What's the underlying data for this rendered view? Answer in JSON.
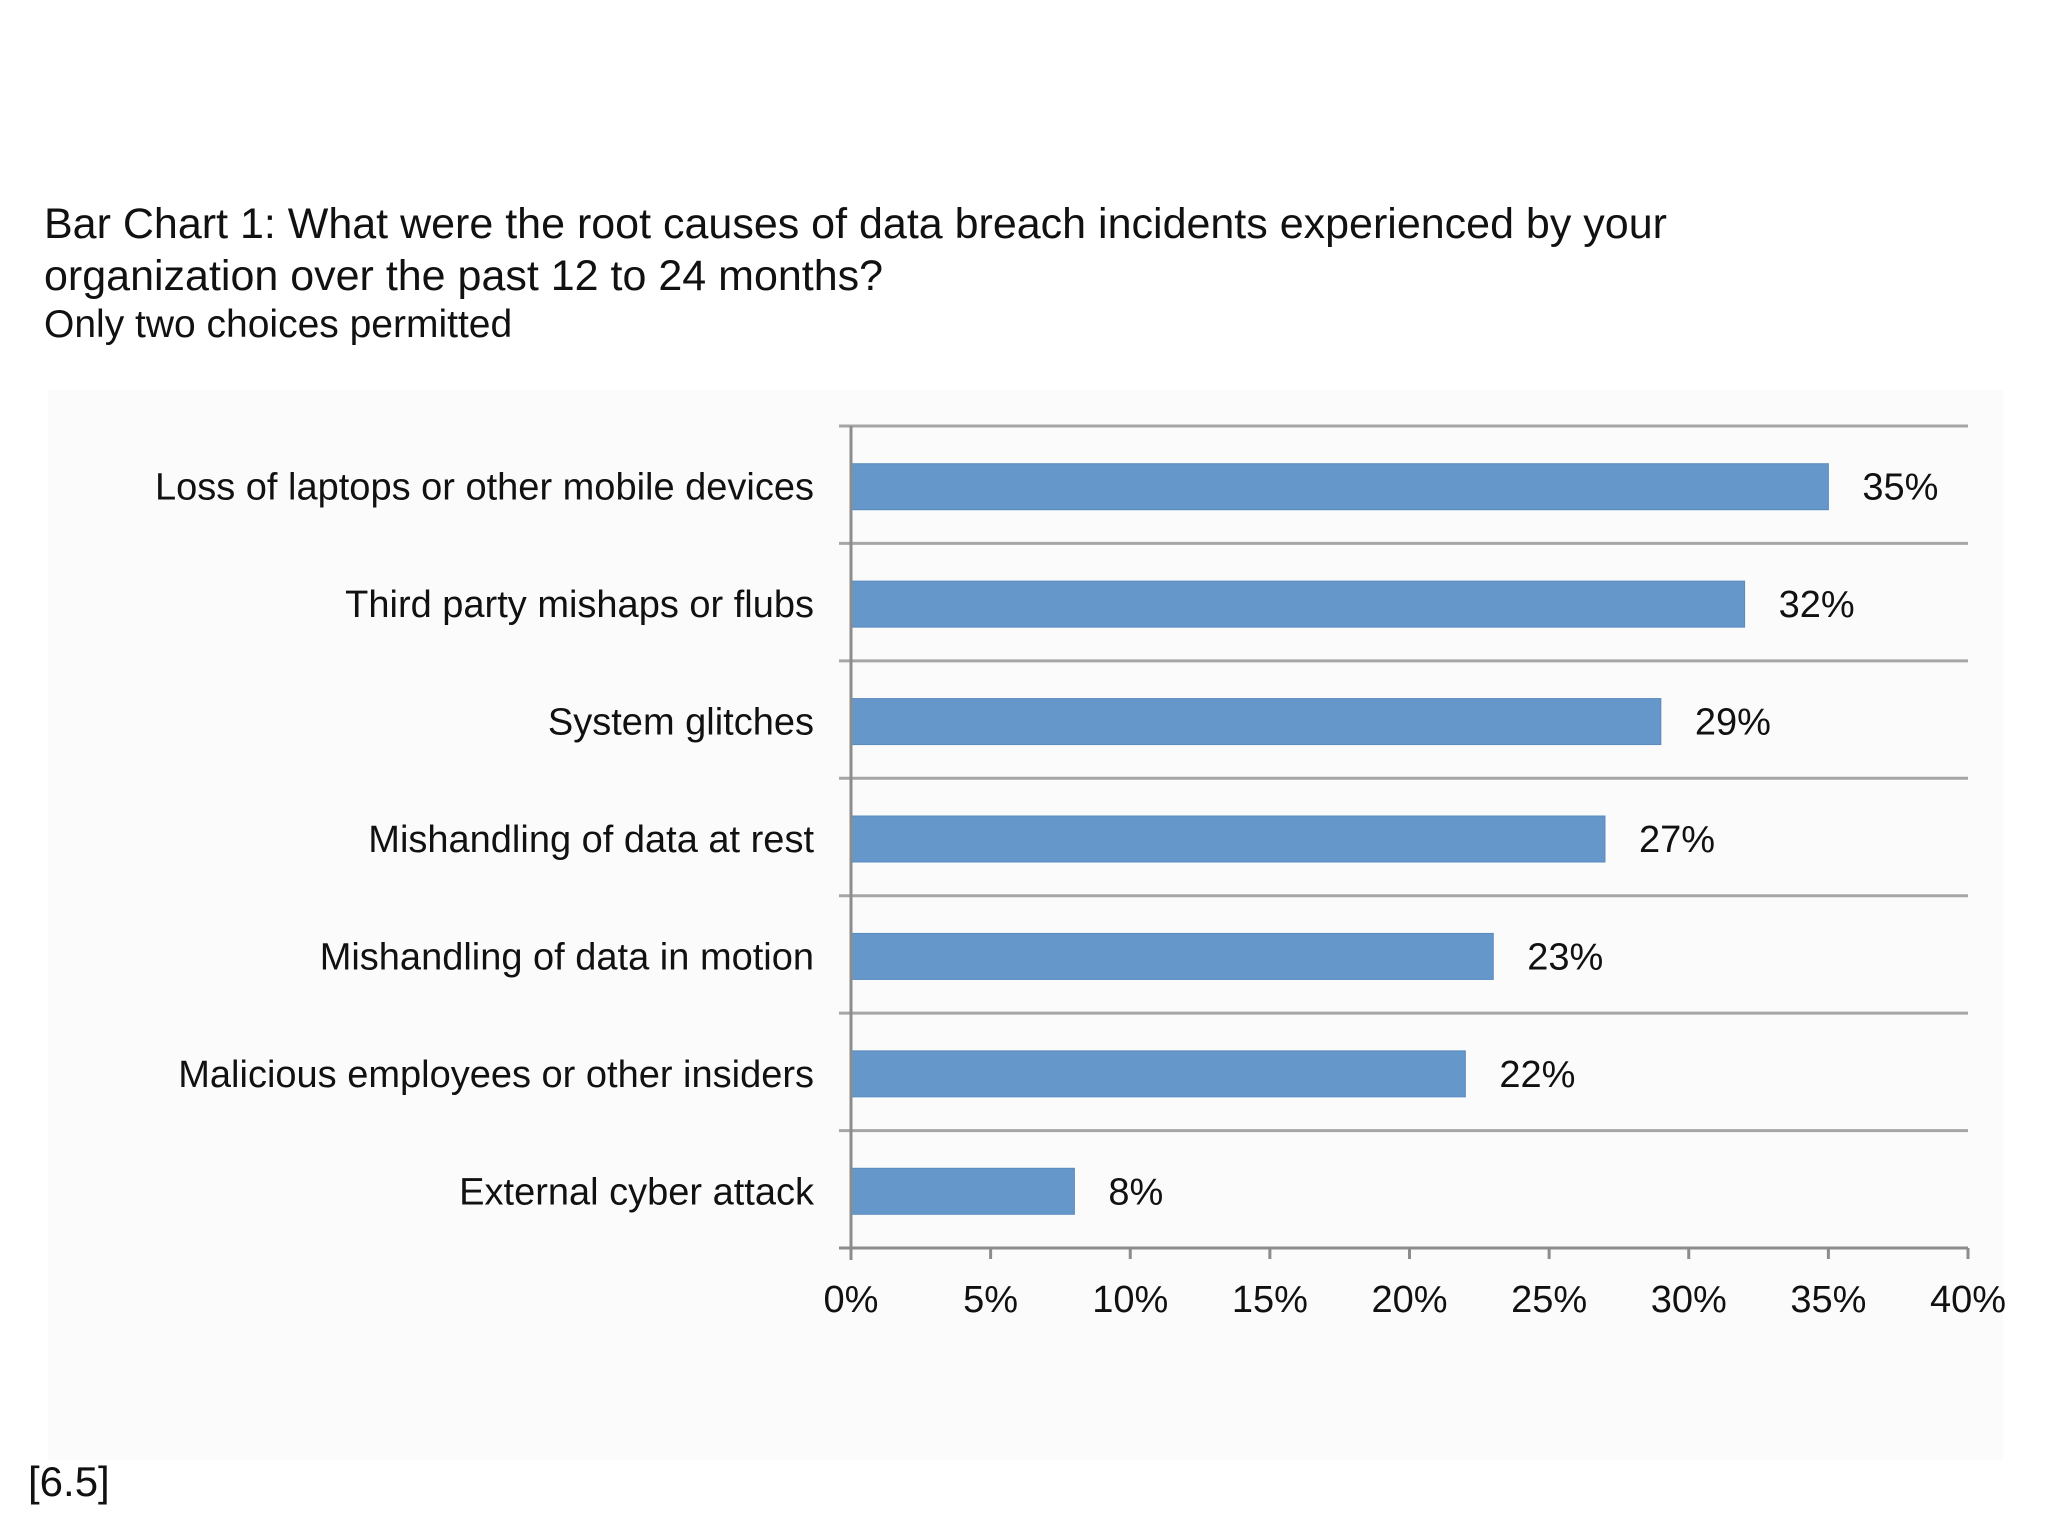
{
  "chart_data": {
    "type": "bar",
    "orientation": "horizontal",
    "title": "Bar Chart 1: What were the root causes of data breach incidents experienced by your organization over the past 12 to 24 months?",
    "title_lines": [
      "Bar Chart 1: What were the root causes of data breach incidents experienced by your",
      "organization over the past 12 to 24 months?"
    ],
    "subtitle": "Only two choices permitted",
    "categories": [
      "Loss of laptops or other mobile devices",
      "Third party mishaps or flubs",
      "System glitches",
      "Mishandling of data at rest",
      "Mishandling of data in motion",
      "Malicious employees or other insiders",
      "External cyber attack"
    ],
    "values": [
      35,
      32,
      29,
      27,
      23,
      22,
      8
    ],
    "data_labels": [
      "35%",
      "32%",
      "29%",
      "27%",
      "23%",
      "22%",
      "8%"
    ],
    "xlim": [
      0,
      40
    ],
    "xticks": [
      0,
      5,
      10,
      15,
      20,
      25,
      30,
      35,
      40
    ],
    "xtick_labels": [
      "0%",
      "5%",
      "10%",
      "15%",
      "20%",
      "25%",
      "30%",
      "35%",
      "40%"
    ],
    "xlabel": "",
    "ylabel": "",
    "grid": "horizontal separators",
    "legend": "none",
    "bar_color": "#6597cb"
  },
  "figure_ref": "[6.5]"
}
